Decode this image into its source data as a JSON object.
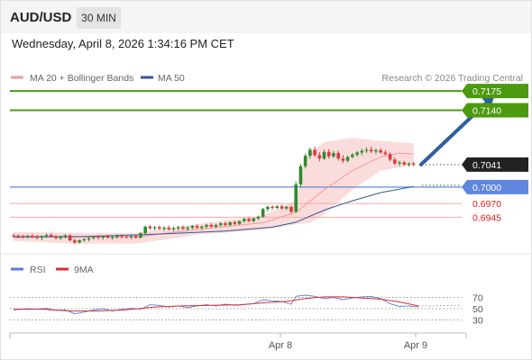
{
  "header": {
    "symbol": "AUD/USD",
    "timeframe": "30 MIN"
  },
  "datetime": "Wednesday, April 8, 2026 1:34:16 PM CET",
  "legend": {
    "items": [
      {
        "label": "MA 20 + Bollinger Bands",
        "color": "#f19a98"
      },
      {
        "label": "MA 50",
        "color": "#30589a"
      }
    ],
    "credit": "Research © 2026 Trading Central"
  },
  "rsi_legend": {
    "items": [
      {
        "label": "RSI",
        "color": "#5b7fd6"
      },
      {
        "label": "9MA",
        "color": "#d93030"
      }
    ]
  },
  "colors": {
    "resistance": "#4c9a10",
    "support": "#4a7fe0",
    "pivot": "#5f87e0",
    "target_red": "#e0191b",
    "bull": "#2f8a2f",
    "bear": "#d83a3a",
    "bands": "#fbdcdc",
    "arrow": "#2f5f9e"
  },
  "chart_data": [
    {
      "type": "candlestick",
      "title": "AUD/USD",
      "timeframe": "30 MIN",
      "x_ticks": [
        "Apr 8",
        "Apr 9"
      ],
      "ylim": [
        0.6885,
        0.719
      ],
      "levels": [
        {
          "label": "0.7175",
          "value": 0.7175,
          "kind": "resistance"
        },
        {
          "label": "0.7140",
          "value": 0.714,
          "kind": "resistance"
        },
        {
          "label": "0.7041",
          "value": 0.7041,
          "kind": "last"
        },
        {
          "label": "0.7000",
          "value": 0.7,
          "kind": "pivot"
        },
        {
          "label": "0.6970",
          "value": 0.697,
          "kind": "support"
        },
        {
          "label": "0.6945",
          "value": 0.6945,
          "kind": "support"
        }
      ],
      "candles": [
        [
          0.6912,
          0.6915,
          0.6908,
          0.6911
        ],
        [
          0.6911,
          0.6914,
          0.6907,
          0.691
        ],
        [
          0.691,
          0.6913,
          0.6906,
          0.6909
        ],
        [
          0.6909,
          0.6913,
          0.6906,
          0.6911
        ],
        [
          0.6911,
          0.6915,
          0.6907,
          0.6909
        ],
        [
          0.6909,
          0.6913,
          0.6905,
          0.6908
        ],
        [
          0.6908,
          0.6912,
          0.6903,
          0.6911
        ],
        [
          0.6911,
          0.6915,
          0.6907,
          0.6913
        ],
        [
          0.6913,
          0.6916,
          0.6908,
          0.691
        ],
        [
          0.691,
          0.6913,
          0.6905,
          0.6907
        ],
        [
          0.6907,
          0.6912,
          0.6904,
          0.691
        ],
        [
          0.691,
          0.6914,
          0.6906,
          0.6912
        ],
        [
          0.6912,
          0.6914,
          0.6901,
          0.6903
        ],
        [
          0.6903,
          0.6906,
          0.6896,
          0.6899
        ],
        [
          0.6899,
          0.6905,
          0.6897,
          0.6903
        ],
        [
          0.6903,
          0.6907,
          0.69,
          0.6905
        ],
        [
          0.6905,
          0.6909,
          0.6901,
          0.6907
        ],
        [
          0.6907,
          0.6911,
          0.6904,
          0.6909
        ],
        [
          0.6909,
          0.6913,
          0.6905,
          0.6908
        ],
        [
          0.6908,
          0.6912,
          0.6904,
          0.6911
        ],
        [
          0.6911,
          0.6913,
          0.6906,
          0.6908
        ],
        [
          0.6908,
          0.6911,
          0.6904,
          0.6909
        ],
        [
          0.6909,
          0.6914,
          0.6906,
          0.6912
        ],
        [
          0.6912,
          0.6914,
          0.6907,
          0.691
        ],
        [
          0.691,
          0.6913,
          0.6906,
          0.6909
        ],
        [
          0.6909,
          0.6913,
          0.6905,
          0.6911
        ],
        [
          0.6911,
          0.6913,
          0.6906,
          0.6908
        ],
        [
          0.6908,
          0.6918,
          0.6906,
          0.6916
        ],
        [
          0.6916,
          0.693,
          0.6914,
          0.6928
        ],
        [
          0.6928,
          0.6931,
          0.6922,
          0.6925
        ],
        [
          0.6925,
          0.6929,
          0.6921,
          0.6927
        ],
        [
          0.6927,
          0.693,
          0.6922,
          0.6924
        ],
        [
          0.6924,
          0.6929,
          0.692,
          0.6926
        ],
        [
          0.6926,
          0.693,
          0.6921,
          0.6923
        ],
        [
          0.6923,
          0.6928,
          0.6919,
          0.6925
        ],
        [
          0.6925,
          0.693,
          0.6921,
          0.6927
        ],
        [
          0.6927,
          0.693,
          0.6922,
          0.6924
        ],
        [
          0.6924,
          0.6929,
          0.692,
          0.6926
        ],
        [
          0.6926,
          0.6931,
          0.6923,
          0.6929
        ],
        [
          0.6929,
          0.6932,
          0.6924,
          0.6926
        ],
        [
          0.6926,
          0.693,
          0.6922,
          0.6928
        ],
        [
          0.6928,
          0.6933,
          0.6925,
          0.6931
        ],
        [
          0.6931,
          0.6934,
          0.6926,
          0.6928
        ],
        [
          0.6928,
          0.6933,
          0.6925,
          0.6931
        ],
        [
          0.6931,
          0.6936,
          0.6928,
          0.6934
        ],
        [
          0.6934,
          0.6937,
          0.6929,
          0.6931
        ],
        [
          0.6931,
          0.6937,
          0.6929,
          0.6936
        ],
        [
          0.6936,
          0.6939,
          0.6931,
          0.6933
        ],
        [
          0.6933,
          0.6939,
          0.6931,
          0.6938
        ],
        [
          0.6938,
          0.6944,
          0.6935,
          0.6942
        ],
        [
          0.6942,
          0.6945,
          0.6936,
          0.6938
        ],
        [
          0.6938,
          0.6944,
          0.6936,
          0.6943
        ],
        [
          0.6943,
          0.6948,
          0.694,
          0.6946
        ],
        [
          0.6946,
          0.6962,
          0.6944,
          0.696
        ],
        [
          0.696,
          0.6966,
          0.6956,
          0.6964
        ],
        [
          0.6964,
          0.6967,
          0.6959,
          0.6962
        ],
        [
          0.6962,
          0.6967,
          0.696,
          0.6965
        ],
        [
          0.6965,
          0.6968,
          0.6959,
          0.6961
        ],
        [
          0.6961,
          0.6966,
          0.6958,
          0.6964
        ],
        [
          0.6964,
          0.6966,
          0.6952,
          0.6955
        ],
        [
          0.6955,
          0.701,
          0.6953,
          0.7005
        ],
        [
          0.7005,
          0.7042,
          0.7,
          0.7038
        ],
        [
          0.7038,
          0.7061,
          0.7034,
          0.7057
        ],
        [
          0.7057,
          0.7072,
          0.7052,
          0.7068
        ],
        [
          0.7068,
          0.7074,
          0.7055,
          0.7058
        ],
        [
          0.7058,
          0.7064,
          0.7047,
          0.7052
        ],
        [
          0.7052,
          0.7068,
          0.7049,
          0.7064
        ],
        [
          0.7064,
          0.7069,
          0.7052,
          0.7056
        ],
        [
          0.7056,
          0.7066,
          0.7053,
          0.7062
        ],
        [
          0.7062,
          0.7066,
          0.7048,
          0.7052
        ],
        [
          0.7052,
          0.7058,
          0.7044,
          0.7048
        ],
        [
          0.7048,
          0.7057,
          0.7045,
          0.7055
        ],
        [
          0.7055,
          0.7062,
          0.7052,
          0.7059
        ],
        [
          0.7059,
          0.7066,
          0.7055,
          0.7063
        ],
        [
          0.7063,
          0.707,
          0.7058,
          0.7066
        ],
        [
          0.7066,
          0.7072,
          0.7062,
          0.7068
        ],
        [
          0.7068,
          0.7074,
          0.7062,
          0.7065
        ],
        [
          0.7065,
          0.707,
          0.706,
          0.7067
        ],
        [
          0.7067,
          0.7071,
          0.7061,
          0.7063
        ],
        [
          0.7063,
          0.7067,
          0.7057,
          0.706
        ],
        [
          0.706,
          0.7063,
          0.7047,
          0.705
        ],
        [
          0.705,
          0.7054,
          0.704,
          0.7043
        ],
        [
          0.7043,
          0.7048,
          0.7038,
          0.7045
        ],
        [
          0.7045,
          0.7048,
          0.7039,
          0.7041
        ],
        [
          0.7041,
          0.7045,
          0.7037,
          0.7043
        ],
        [
          0.7043,
          0.7046,
          0.7038,
          0.7041
        ]
      ],
      "ma20": [
        [
          0,
          0.6911
        ],
        [
          12,
          0.6909
        ],
        [
          26,
          0.6909
        ],
        [
          40,
          0.6924
        ],
        [
          53,
          0.6935
        ],
        [
          60,
          0.6954
        ],
        [
          66,
          0.6995
        ],
        [
          72,
          0.703
        ],
        [
          78,
          0.7055
        ],
        [
          82,
          0.7062
        ],
        [
          85,
          0.706
        ]
      ],
      "bollinger_upper": [
        [
          0,
          0.6918
        ],
        [
          12,
          0.6917
        ],
        [
          26,
          0.6916
        ],
        [
          40,
          0.6934
        ],
        [
          53,
          0.6948
        ],
        [
          60,
          0.6975
        ],
        [
          62,
          0.7055
        ],
        [
          66,
          0.7082
        ],
        [
          72,
          0.709
        ],
        [
          78,
          0.7084
        ],
        [
          85,
          0.708
        ]
      ],
      "bollinger_lower": [
        [
          0,
          0.6902
        ],
        [
          12,
          0.6897
        ],
        [
          26,
          0.6897
        ],
        [
          40,
          0.6914
        ],
        [
          53,
          0.6922
        ],
        [
          60,
          0.6932
        ],
        [
          63,
          0.6935
        ],
        [
          66,
          0.695
        ],
        [
          72,
          0.6995
        ],
        [
          78,
          0.703
        ],
        [
          85,
          0.704
        ]
      ],
      "ma50": [
        [
          0,
          0.6909
        ],
        [
          15,
          0.691
        ],
        [
          30,
          0.6914
        ],
        [
          45,
          0.692
        ],
        [
          55,
          0.6927
        ],
        [
          60,
          0.6936
        ],
        [
          66,
          0.6958
        ],
        [
          72,
          0.6975
        ],
        [
          78,
          0.699
        ],
        [
          85,
          0.7001
        ]
      ],
      "projection": [
        [
          86,
          0.7041
        ],
        [
          103,
          0.7168
        ]
      ]
    },
    {
      "type": "line",
      "title": "RSI",
      "series_names": [
        "RSI",
        "9MA"
      ],
      "ylim": [
        10,
        90
      ],
      "y_ticks": [
        70,
        50,
        30
      ],
      "rsi": [
        [
          0,
          48
        ],
        [
          3,
          50
        ],
        [
          5,
          49
        ],
        [
          7,
          51
        ],
        [
          9,
          47
        ],
        [
          11,
          48
        ],
        [
          13,
          41
        ],
        [
          15,
          44
        ],
        [
          17,
          48
        ],
        [
          19,
          50
        ],
        [
          21,
          46
        ],
        [
          23,
          49
        ],
        [
          25,
          51
        ],
        [
          27,
          49
        ],
        [
          29,
          57
        ],
        [
          31,
          56
        ],
        [
          33,
          53
        ],
        [
          35,
          55
        ],
        [
          37,
          52
        ],
        [
          39,
          55
        ],
        [
          41,
          57
        ],
        [
          43,
          55
        ],
        [
          45,
          58
        ],
        [
          47,
          56
        ],
        [
          49,
          57
        ],
        [
          51,
          59
        ],
        [
          53,
          66
        ],
        [
          55,
          64
        ],
        [
          57,
          63
        ],
        [
          59,
          58
        ],
        [
          60,
          72
        ],
        [
          62,
          74
        ],
        [
          64,
          72
        ],
        [
          66,
          68
        ],
        [
          68,
          70
        ],
        [
          70,
          66
        ],
        [
          72,
          69
        ],
        [
          74,
          71
        ],
        [
          76,
          72
        ],
        [
          78,
          68
        ],
        [
          80,
          59
        ],
        [
          82,
          54
        ],
        [
          84,
          55
        ],
        [
          86,
          53
        ]
      ],
      "ma9": [
        [
          0,
          49
        ],
        [
          6,
          49
        ],
        [
          12,
          46
        ],
        [
          18,
          46
        ],
        [
          24,
          48
        ],
        [
          30,
          53
        ],
        [
          36,
          55
        ],
        [
          42,
          56
        ],
        [
          48,
          57
        ],
        [
          54,
          61
        ],
        [
          58,
          63
        ],
        [
          62,
          68
        ],
        [
          66,
          71
        ],
        [
          70,
          71
        ],
        [
          74,
          69
        ],
        [
          78,
          67
        ],
        [
          82,
          62
        ],
        [
          86,
          55
        ]
      ],
      "ma9_projection": [
        [
          86,
          55
        ],
        [
          90,
          56
        ]
      ]
    }
  ]
}
